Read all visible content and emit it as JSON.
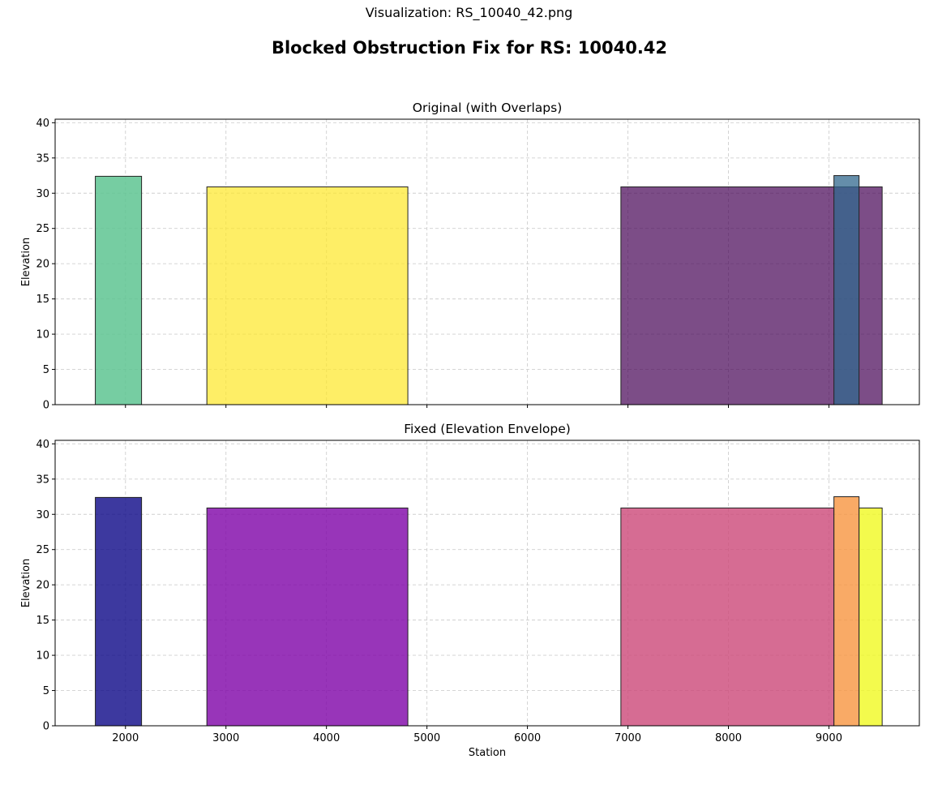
{
  "caption": "Visualization: RS_10040_42.png",
  "chart_data": {
    "suptitle": "Blocked Obstruction Fix for RS: 10040.42",
    "xlabel": "Station",
    "xlim": [
      1300,
      9900
    ],
    "xticks": [
      2000,
      3000,
      4000,
      5000,
      6000,
      7000,
      8000,
      9000
    ],
    "grid": true,
    "panels": [
      {
        "type": "bar",
        "title": "Original (with Overlaps)",
        "ylabel": "Elevation",
        "ylim": [
          0,
          40.5
        ],
        "yticks": [
          0,
          5,
          10,
          15,
          20,
          25,
          30,
          35,
          40
        ],
        "show_x_tick_labels": false,
        "blocks": [
          {
            "x_start": 1700,
            "x_end": 2160,
            "elevation": 32.4,
            "color": "#5ec492",
            "opacity": 0.85
          },
          {
            "x_start": 2810,
            "x_end": 4810,
            "elevation": 30.9,
            "color": "#fde725",
            "opacity": 0.7
          },
          {
            "x_start": 6930,
            "x_end": 9530,
            "elevation": 30.9,
            "color": "#440154",
            "opacity": 0.7
          },
          {
            "x_start": 9050,
            "x_end": 9300,
            "elevation": 32.5,
            "color": "#31688e",
            "opacity": 0.75
          }
        ]
      },
      {
        "type": "bar",
        "title": "Fixed (Elevation Envelope)",
        "ylabel": "Elevation",
        "ylim": [
          0,
          40.5
        ],
        "yticks": [
          0,
          5,
          10,
          15,
          20,
          25,
          30,
          35,
          40
        ],
        "show_x_tick_labels": true,
        "blocks": [
          {
            "x_start": 1700,
            "x_end": 2160,
            "elevation": 32.4,
            "color": "#0d0887",
            "opacity": 0.8
          },
          {
            "x_start": 2810,
            "x_end": 4810,
            "elevation": 30.9,
            "color": "#7e03a8",
            "opacity": 0.8
          },
          {
            "x_start": 6930,
            "x_end": 9050,
            "elevation": 30.9,
            "color": "#cc4778",
            "opacity": 0.8
          },
          {
            "x_start": 9050,
            "x_end": 9300,
            "elevation": 32.5,
            "color": "#f89540",
            "opacity": 0.8
          },
          {
            "x_start": 9300,
            "x_end": 9530,
            "elevation": 30.9,
            "color": "#f0f921",
            "opacity": 0.8
          }
        ]
      }
    ]
  }
}
